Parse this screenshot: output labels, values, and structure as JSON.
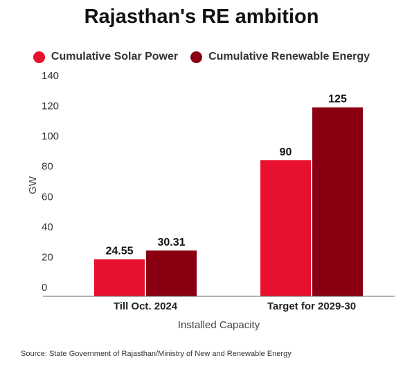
{
  "chart_data": {
    "type": "bar",
    "title": "Rajasthan's RE ambition",
    "xlabel": "Installed Capacity",
    "ylabel": "GW",
    "ylim": [
      0,
      140
    ],
    "yticks": [
      0,
      20,
      40,
      60,
      80,
      100,
      120,
      140
    ],
    "categories": [
      "Till Oct. 2024",
      "Target for 2029-30"
    ],
    "series": [
      {
        "name": "Cumulative Solar Power",
        "color": "#e8112d",
        "values": [
          24.55,
          90
        ],
        "labels": [
          "24.55",
          "90"
        ]
      },
      {
        "name": "Cumulative Renewable Energy",
        "color": "#8a0012",
        "values": [
          30.31,
          125
        ],
        "labels": [
          "30.31",
          "125"
        ]
      }
    ],
    "legend": "top-center",
    "grid": false,
    "source": "Source: State Government of Rajasthan/Ministry of New and Renewable Energy"
  }
}
